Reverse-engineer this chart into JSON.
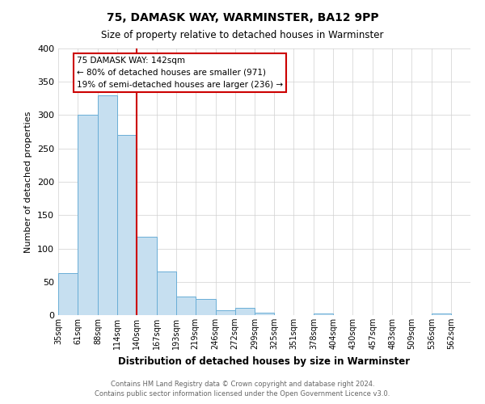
{
  "title": "75, DAMASK WAY, WARMINSTER, BA12 9PP",
  "subtitle": "Size of property relative to detached houses in Warminster",
  "xlabel": "Distribution of detached houses by size in Warminster",
  "ylabel": "Number of detached properties",
  "bin_labels": [
    "35sqm",
    "61sqm",
    "88sqm",
    "114sqm",
    "140sqm",
    "167sqm",
    "193sqm",
    "219sqm",
    "246sqm",
    "272sqm",
    "299sqm",
    "325sqm",
    "351sqm",
    "378sqm",
    "404sqm",
    "430sqm",
    "457sqm",
    "483sqm",
    "509sqm",
    "536sqm",
    "562sqm"
  ],
  "bin_edges": [
    35,
    61,
    88,
    114,
    140,
    167,
    193,
    219,
    246,
    272,
    299,
    325,
    351,
    378,
    404,
    430,
    457,
    483,
    509,
    536,
    562,
    588
  ],
  "bar_heights": [
    63,
    300,
    330,
    270,
    118,
    65,
    28,
    24,
    7,
    11,
    4,
    0,
    0,
    3,
    0,
    0,
    0,
    0,
    0,
    3,
    0
  ],
  "bar_color": "#c6dff0",
  "bar_edge_color": "#6aaed6",
  "vline_x": 140,
  "vline_color": "#cc0000",
  "ylim": [
    0,
    400
  ],
  "yticks": [
    0,
    50,
    100,
    150,
    200,
    250,
    300,
    350,
    400
  ],
  "annotation_title": "75 DAMASK WAY: 142sqm",
  "annotation_line1": "← 80% of detached houses are smaller (971)",
  "annotation_line2": "19% of semi-detached houses are larger (236) →",
  "annotation_box_color": "#cc0000",
  "footer_line1": "Contains HM Land Registry data © Crown copyright and database right 2024.",
  "footer_line2": "Contains public sector information licensed under the Open Government Licence v3.0.",
  "bg_color": "#ffffff",
  "grid_color": "#d0d0d0"
}
